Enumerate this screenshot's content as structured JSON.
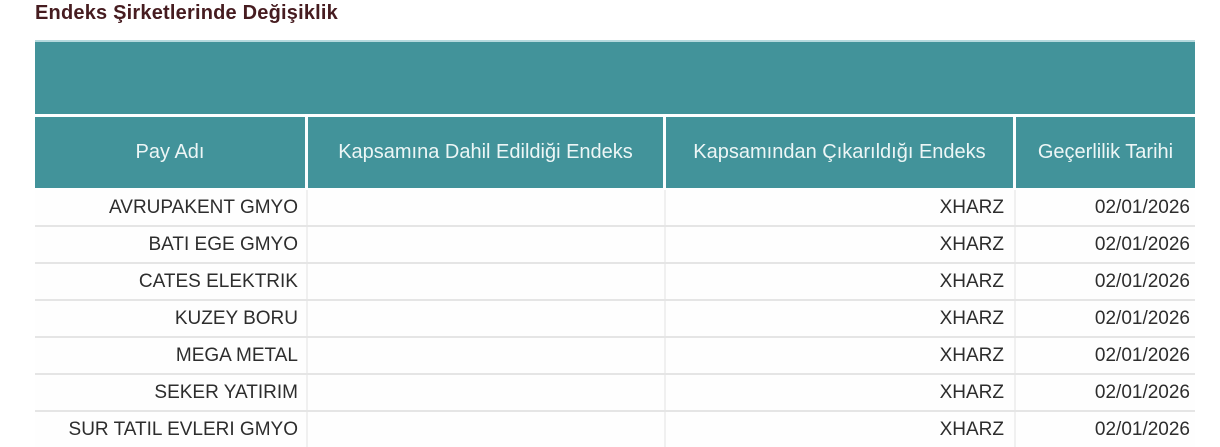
{
  "page": {
    "title": "Endeks Şirketlerinde Değişiklik"
  },
  "table": {
    "columns": [
      {
        "key": "pay_adi",
        "label": "Pay Adı"
      },
      {
        "key": "dahil_endeks",
        "label": "Kapsamına Dahil Edildiği Endeks"
      },
      {
        "key": "cikarildigi_endeks",
        "label": "Kapsamından Çıkarıldığı Endeks"
      },
      {
        "key": "gecerlilik_tarihi",
        "label": "Geçerlilik Tarihi"
      }
    ],
    "rows": [
      {
        "pay_adi": "AVRUPAKENT GMYO",
        "dahil_endeks": "",
        "cikarildigi_endeks": "XHARZ",
        "gecerlilik_tarihi": "02/01/2026"
      },
      {
        "pay_adi": "BATI EGE GMYO",
        "dahil_endeks": "",
        "cikarildigi_endeks": "XHARZ",
        "gecerlilik_tarihi": "02/01/2026"
      },
      {
        "pay_adi": "CATES ELEKTRIK",
        "dahil_endeks": "",
        "cikarildigi_endeks": "XHARZ",
        "gecerlilik_tarihi": "02/01/2026"
      },
      {
        "pay_adi": "KUZEY BORU",
        "dahil_endeks": "",
        "cikarildigi_endeks": "XHARZ",
        "gecerlilik_tarihi": "02/01/2026"
      },
      {
        "pay_adi": "MEGA METAL",
        "dahil_endeks": "",
        "cikarildigi_endeks": "XHARZ",
        "gecerlilik_tarihi": "02/01/2026"
      },
      {
        "pay_adi": "SEKER YATIRIM",
        "dahil_endeks": "",
        "cikarildigi_endeks": "XHARZ",
        "gecerlilik_tarihi": "02/01/2026"
      },
      {
        "pay_adi": "SUR TATIL EVLERI GMYO",
        "dahil_endeks": "",
        "cikarildigi_endeks": "XHARZ",
        "gecerlilik_tarihi": "02/01/2026"
      }
    ]
  },
  "colors": {
    "header_teal": "#42939a",
    "header_text": "#edf6f6",
    "title_text": "#461c20",
    "body_text": "#2d2d2d"
  }
}
